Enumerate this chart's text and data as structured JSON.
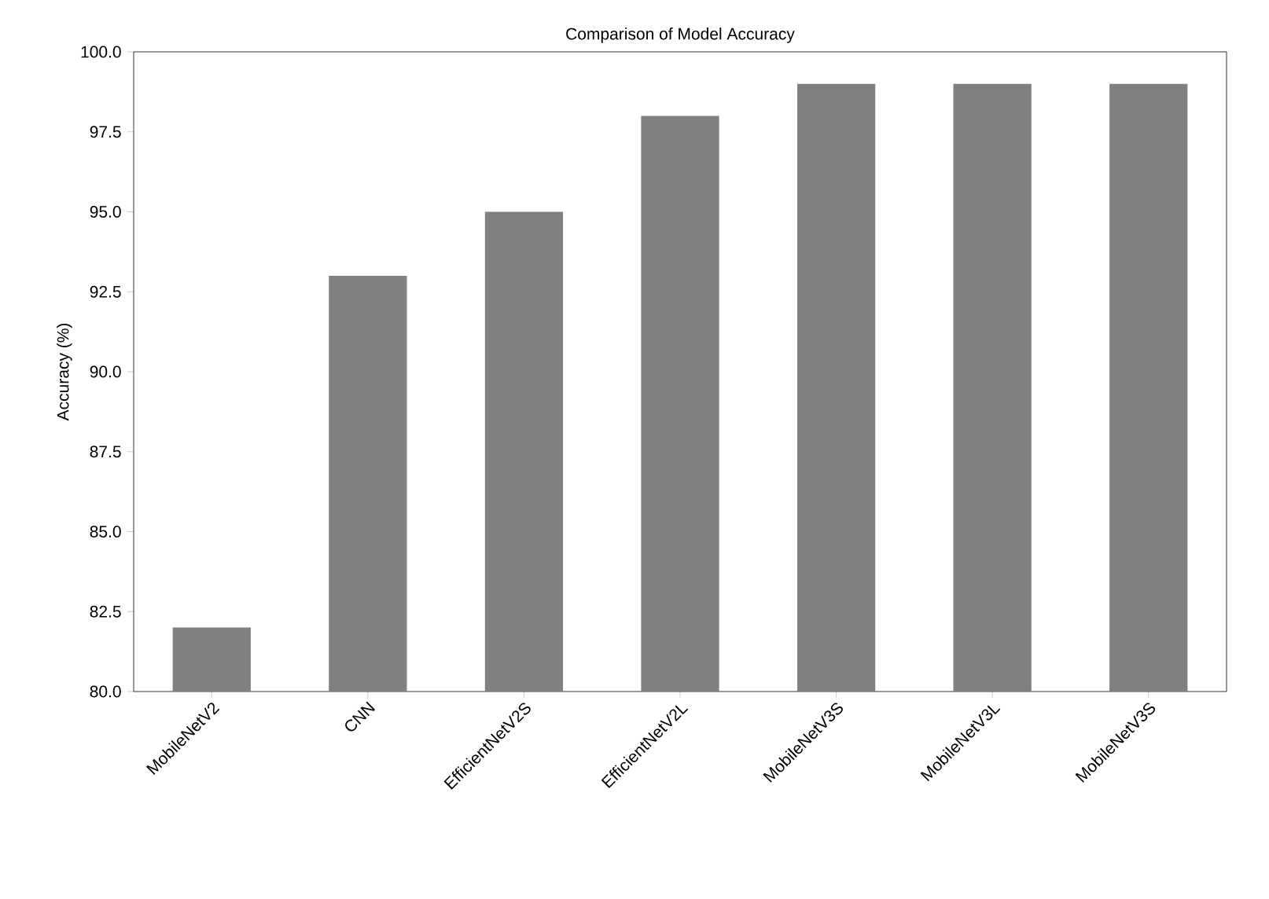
{
  "chart_data": {
    "type": "bar",
    "title": "Comparison of Model Accuracy",
    "ylabel": "Accuracy (%)",
    "categories": [
      "MobileNetV2",
      "CNN",
      "EfficientNetV2S",
      "EfficientNetV2L",
      "MobileNetV3S",
      "MobileNetV3L",
      "MobileNetV3S"
    ],
    "values": [
      82,
      93,
      95,
      98,
      99,
      99,
      99
    ],
    "color": "#808080",
    "ylim": [
      80,
      100
    ],
    "yticks": [
      {
        "value": 80,
        "label": "80.0"
      },
      {
        "value": 82.5,
        "label": "82.5"
      },
      {
        "value": 85,
        "label": "85.0"
      },
      {
        "value": 87.5,
        "label": "87.5"
      },
      {
        "value": 90,
        "label": "90.0"
      },
      {
        "value": 92.5,
        "label": "92.5"
      },
      {
        "value": 95,
        "label": "95.0"
      },
      {
        "value": 97.5,
        "label": "97.5"
      },
      {
        "value": 100,
        "label": "100.0"
      }
    ],
    "grid": false
  }
}
